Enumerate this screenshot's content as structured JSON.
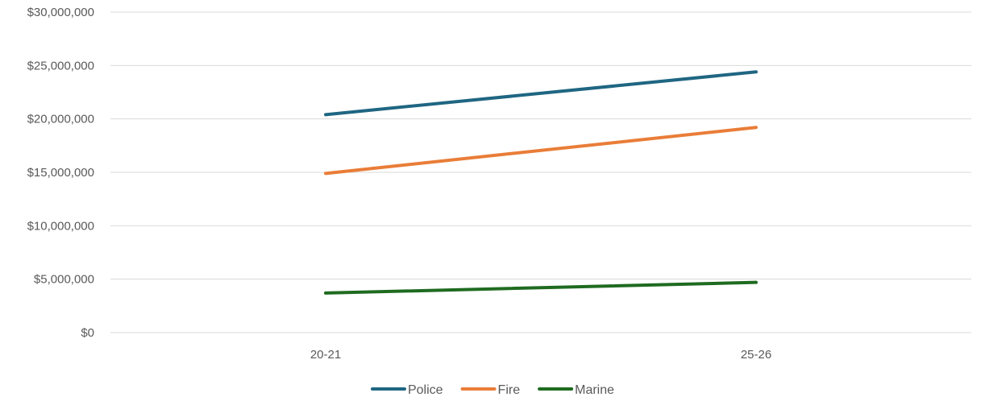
{
  "chart_data": {
    "type": "line",
    "title": "",
    "xlabel": "",
    "ylabel": "",
    "categories": [
      "20-21",
      "25-26"
    ],
    "ylim": [
      0,
      30000000
    ],
    "y_ticks": [
      0,
      5000000,
      10000000,
      15000000,
      20000000,
      25000000,
      30000000
    ],
    "y_tick_labels": [
      "$0",
      "$5,000,000",
      "$10,000,000",
      "$15,000,000",
      "$20,000,000",
      "$25,000,000",
      "$30,000,000"
    ],
    "grid": true,
    "legend_position": "bottom",
    "series": [
      {
        "name": "Police",
        "values": [
          20400000,
          24400000
        ],
        "color": "#1f6682"
      },
      {
        "name": "Fire",
        "values": [
          14900000,
          19200000
        ],
        "color": "#e97d38"
      },
      {
        "name": "Marine",
        "values": [
          3700000,
          4700000
        ],
        "color": "#1f6b20"
      }
    ]
  }
}
